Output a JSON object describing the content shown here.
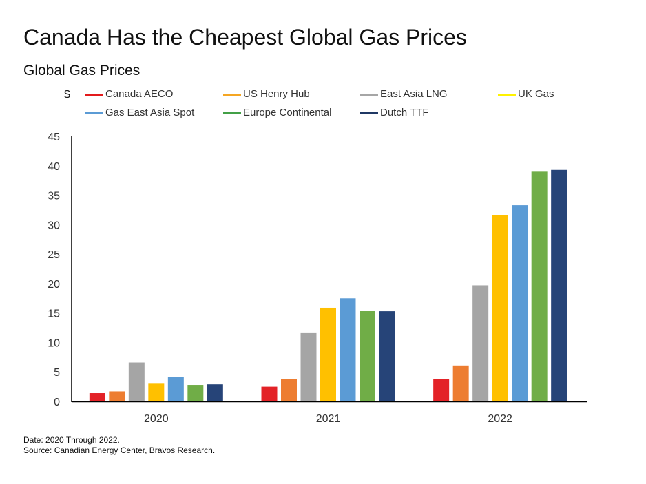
{
  "title": "Canada Has the Cheapest Global Gas Prices",
  "subtitle": "Global Gas Prices",
  "y_unit": "$",
  "legend": [
    {
      "label": "Canada AECO",
      "color": "#e31a1c"
    },
    {
      "label": "US Henry Hub",
      "color": "#f5a623"
    },
    {
      "label": "East Asia LNG",
      "color": "#a6a6a6"
    },
    {
      "label": "UK Gas",
      "color": "#fff200"
    },
    {
      "label": "Gas East Asia Spot",
      "color": "#5b9bd5"
    },
    {
      "label": "Europe Continental",
      "color": "#43a047"
    },
    {
      "label": "Dutch TTF",
      "color": "#1f3864"
    }
  ],
  "chart_data": {
    "type": "bar",
    "categories": [
      "2020",
      "2021",
      "2022"
    ],
    "series": [
      {
        "name": "Canada AECO",
        "color": "#e32227",
        "values": [
          1.4,
          2.5,
          3.8
        ]
      },
      {
        "name": "US Henry Hub",
        "color": "#ed7d31",
        "values": [
          1.7,
          3.8,
          6.1
        ]
      },
      {
        "name": "East Asia LNG",
        "color": "#a5a5a5",
        "values": [
          6.6,
          11.7,
          19.7
        ]
      },
      {
        "name": "UK Gas",
        "color": "#ffc000",
        "values": [
          3.0,
          15.9,
          31.6
        ]
      },
      {
        "name": "Gas East Asia Spot",
        "color": "#5b9bd5",
        "values": [
          4.1,
          17.5,
          33.3
        ]
      },
      {
        "name": "Europe Continental",
        "color": "#70ad47",
        "values": [
          2.8,
          15.4,
          39.0
        ]
      },
      {
        "name": "Dutch TTF",
        "color": "#264478",
        "values": [
          2.9,
          15.3,
          39.3
        ]
      }
    ],
    "ylim": [
      0,
      45
    ],
    "yticks": [
      0,
      5,
      10,
      15,
      20,
      25,
      30,
      35,
      40,
      45
    ],
    "ylabel": "$",
    "grid": false,
    "legend_position": "top"
  },
  "notes": {
    "date": "Date: 2020 Through 2022.",
    "source": "Source: Canadian Energy Center, Bravos Research."
  }
}
